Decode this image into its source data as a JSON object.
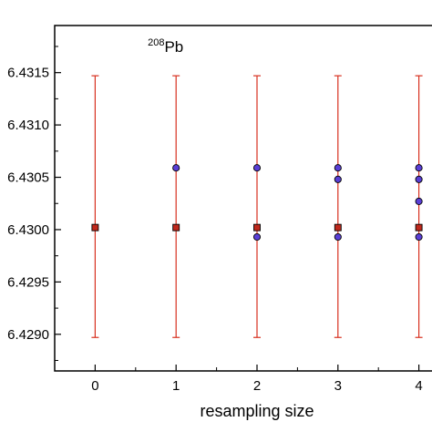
{
  "chart_data": {
    "type": "scatter",
    "title": "",
    "xlabel": "resampling size",
    "ylabel": "",
    "annotation": {
      "superscript": "208",
      "text": "Pb"
    },
    "xlim": [
      -0.5,
      4.5
    ],
    "ylim": [
      6.42865,
      6.43195
    ],
    "xticks": [
      0,
      1,
      2,
      3,
      4
    ],
    "xtick_labels": [
      "0",
      "1",
      "2",
      "3",
      "4"
    ],
    "yticks": [
      6.429,
      6.4295,
      6.43,
      6.4305,
      6.431,
      6.4315
    ],
    "ytick_labels": [
      "6.4290",
      "6.4295",
      "6.4300",
      "6.4305",
      "6.4310",
      "6.4315"
    ],
    "grid": false,
    "colors": {
      "mean_marker": "#c0281c",
      "error_bar": "#d7301f",
      "sample_marker": "#5a3fd6",
      "axis": "#000000"
    },
    "mean_series": {
      "marker": "square",
      "points": [
        {
          "x": 0,
          "y": 6.43002,
          "ylow": 6.42897,
          "yhigh": 6.43147
        },
        {
          "x": 1,
          "y": 6.43002,
          "ylow": 6.42897,
          "yhigh": 6.43147
        },
        {
          "x": 2,
          "y": 6.43002,
          "ylow": 6.42897,
          "yhigh": 6.43147
        },
        {
          "x": 3,
          "y": 6.43002,
          "ylow": 6.42897,
          "yhigh": 6.43147
        },
        {
          "x": 4,
          "y": 6.43002,
          "ylow": 6.42897,
          "yhigh": 6.43147
        }
      ]
    },
    "sample_series": {
      "marker": "circle",
      "points": [
        {
          "x": 1,
          "y": 6.43059
        },
        {
          "x": 2,
          "y": 6.43059
        },
        {
          "x": 2,
          "y": 6.42993
        },
        {
          "x": 3,
          "y": 6.43059
        },
        {
          "x": 3,
          "y": 6.43048
        },
        {
          "x": 3,
          "y": 6.42993
        },
        {
          "x": 4,
          "y": 6.43059
        },
        {
          "x": 4,
          "y": 6.43048
        },
        {
          "x": 4,
          "y": 6.43027
        },
        {
          "x": 4,
          "y": 6.42993
        }
      ]
    }
  }
}
